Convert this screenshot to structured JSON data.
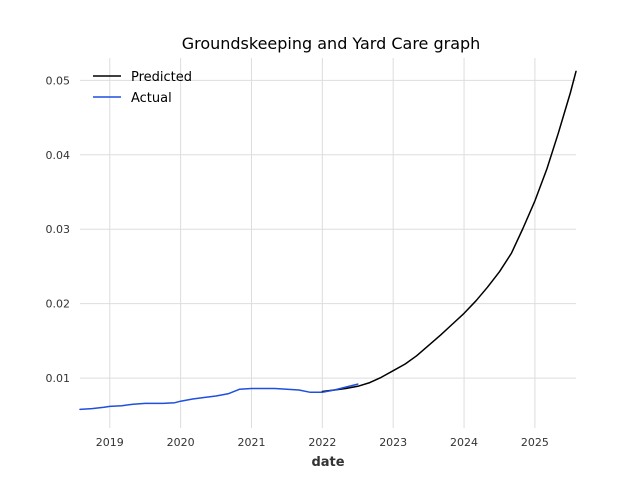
{
  "chart_data": {
    "type": "line",
    "title": "Groundskeeping and Yard Care graph",
    "xlabel": "date",
    "ylabel": "",
    "xlim": [
      2018.58,
      2025.58
    ],
    "ylim": [
      0.0033,
      0.053
    ],
    "x_ticks": [
      2019,
      2020,
      2021,
      2022,
      2023,
      2024,
      2025
    ],
    "x_tick_labels": [
      "2019",
      "2020",
      "2021",
      "2022",
      "2023",
      "2024",
      "2025"
    ],
    "y_ticks": [
      0.01,
      0.02,
      0.03,
      0.04,
      0.05
    ],
    "y_tick_labels": [
      "0.01",
      "0.02",
      "0.03",
      "0.04",
      "0.05"
    ],
    "grid": true,
    "legend_position": "top-left",
    "series": [
      {
        "name": "Predicted",
        "color": "#000000",
        "x": [
          2022.0,
          2022.17,
          2022.33,
          2022.5,
          2022.67,
          2022.83,
          2023.0,
          2023.17,
          2023.33,
          2023.5,
          2023.67,
          2023.83,
          2024.0,
          2024.17,
          2024.33,
          2024.5,
          2024.67,
          2024.83,
          2025.0,
          2025.17,
          2025.33,
          2025.5,
          2025.58
        ],
        "y": [
          0.0082,
          0.0084,
          0.0086,
          0.0089,
          0.0094,
          0.0101,
          0.011,
          0.0119,
          0.013,
          0.0144,
          0.0158,
          0.0172,
          0.0187,
          0.0204,
          0.0222,
          0.0243,
          0.0268,
          0.0301,
          0.0338,
          0.0381,
          0.0429,
          0.0483,
          0.0512
        ]
      },
      {
        "name": "Actual",
        "color": "#1f4fe0",
        "x": [
          2018.58,
          2018.75,
          2018.92,
          2019.0,
          2019.17,
          2019.33,
          2019.5,
          2019.58,
          2019.75,
          2019.92,
          2020.0,
          2020.17,
          2020.33,
          2020.5,
          2020.67,
          2020.83,
          2021.0,
          2021.17,
          2021.33,
          2021.5,
          2021.67,
          2021.83,
          2022.0,
          2022.17,
          2022.33,
          2022.5
        ],
        "y": [
          0.0058,
          0.0059,
          0.0061,
          0.0062,
          0.0063,
          0.0065,
          0.0066,
          0.0066,
          0.0066,
          0.0067,
          0.0069,
          0.0072,
          0.0074,
          0.0076,
          0.0079,
          0.0085,
          0.0086,
          0.0086,
          0.0086,
          0.0085,
          0.0084,
          0.0081,
          0.0081,
          0.0084,
          0.0088,
          0.0092
        ]
      }
    ]
  }
}
